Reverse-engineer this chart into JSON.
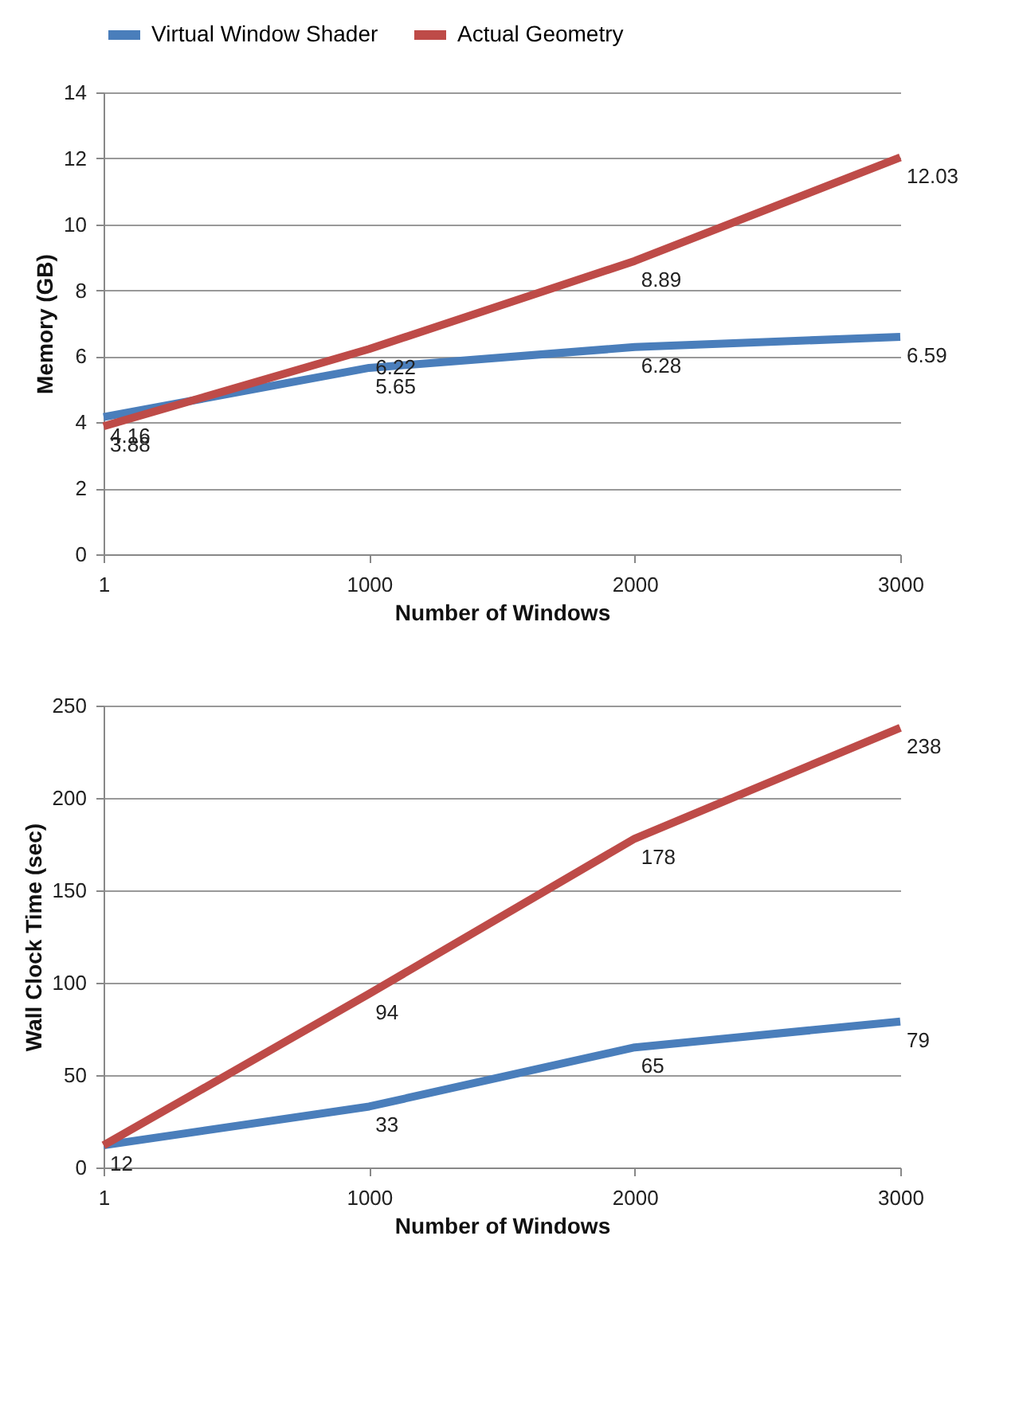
{
  "chart_data": [
    {
      "type": "line",
      "xlabel": "Number of Windows",
      "ylabel": "Memory  (GB)",
      "categories": [
        "1",
        "1000",
        "2000",
        "3000"
      ],
      "ylim": [
        0,
        14
      ],
      "yticks": [
        0,
        2,
        4,
        6,
        8,
        10,
        12,
        14
      ],
      "grid": "y",
      "legend": "top",
      "marker": "none",
      "line_style": "solid",
      "series": [
        {
          "name": "Virtual Window Shader",
          "color": "#4a7ebb",
          "values": [
            4.16,
            5.65,
            6.28,
            6.59
          ],
          "value_labels": [
            "4.16",
            "5.65",
            "6.28",
            "6.59"
          ]
        },
        {
          "name": "Actual Geometry",
          "color": "#be4b48",
          "values": [
            3.88,
            6.22,
            8.89,
            12.03
          ],
          "value_labels": [
            "3.88",
            "6.22",
            "8.89",
            "12.03"
          ]
        }
      ]
    },
    {
      "type": "line",
      "xlabel": "Number of Windows",
      "ylabel": "Wall Clock Time  (sec)",
      "categories": [
        "1",
        "1000",
        "2000",
        "3000"
      ],
      "ylim": [
        0,
        250
      ],
      "yticks": [
        0,
        50,
        100,
        150,
        200,
        250
      ],
      "grid": "y",
      "legend": "top",
      "marker": "none",
      "line_style": "solid",
      "series": [
        {
          "name": "Virtual Window Shader",
          "color": "#4a7ebb",
          "values": [
            12,
            33,
            65,
            79
          ],
          "value_labels": [
            "12",
            "33",
            "65",
            "79"
          ]
        },
        {
          "name": "Actual Geometry",
          "color": "#be4b48",
          "values": [
            12,
            94,
            178,
            238
          ],
          "value_labels": [
            null,
            "94",
            "178",
            "238"
          ]
        }
      ]
    }
  ]
}
